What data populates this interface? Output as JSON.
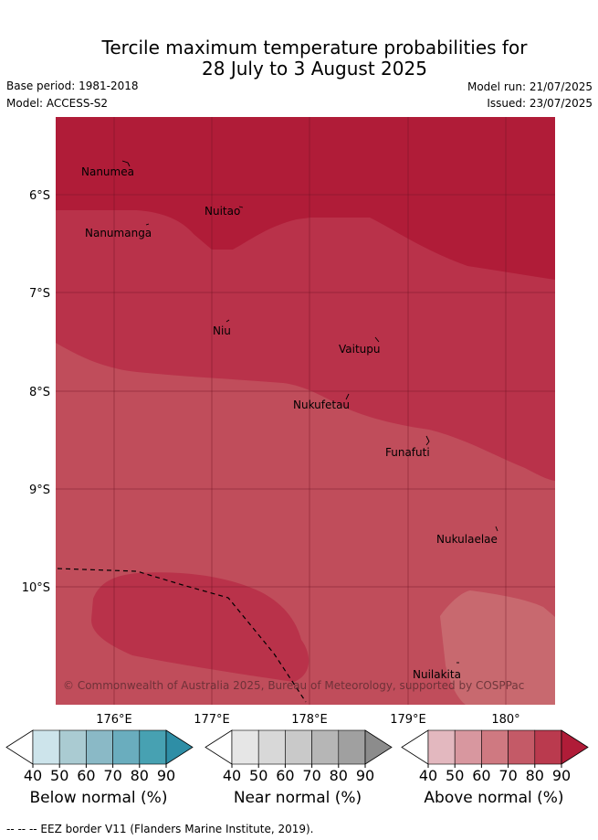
{
  "title": {
    "line1": "Tercile maximum temperature probabilities for",
    "line2": "28 July to 3 August 2025"
  },
  "meta": {
    "base_period": "Base period: 1981-2018",
    "model": "Model: ACCESS-S2",
    "model_run": "Model run: 21/07/2025",
    "issued": "Issued: 23/07/2025"
  },
  "map": {
    "lat_labels": [
      "6°S",
      "7°S",
      "8°S",
      "9°S",
      "10°S"
    ],
    "lon_labels": [
      "176°E",
      "177°E",
      "178°E",
      "179°E",
      "180°"
    ],
    "places": [
      "Nanumea",
      "Nuitao",
      "Nanumanga",
      "Niu",
      "Vaitupu",
      "Nukufetau",
      "Funafuti",
      "Nukulaelae",
      "Nuilakita"
    ],
    "copyright": "© Commonwealth of Australia 2025, Bureau of Meteorology, supported by COSPPac",
    "palette": {
      "above_90": "#b01c38",
      "above_80": "#b9324a",
      "above_70": "#c04d5b",
      "above_60": "#c8696f",
      "eez_line": "#000000"
    }
  },
  "colorbars": [
    {
      "label": "Below normal (%)",
      "ticks": [
        "40",
        "50",
        "60",
        "70",
        "80",
        "90"
      ],
      "colors": [
        "#cde4eb",
        "#aacbd2",
        "#8ab9c6",
        "#6aadbe",
        "#47a1b2",
        "#2e8ea6"
      ]
    },
    {
      "label": "Near normal (%)",
      "ticks": [
        "40",
        "50",
        "60",
        "70",
        "80",
        "90"
      ],
      "colors": [
        "#e6e6e6",
        "#d8d8d8",
        "#c9c9c9",
        "#b6b6b6",
        "#a0a0a0",
        "#8c8c8c"
      ]
    },
    {
      "label": "Above normal (%)",
      "ticks": [
        "40",
        "50",
        "60",
        "70",
        "80",
        "90"
      ],
      "colors": [
        "#e3b8bf",
        "#d8979f",
        "#cf7981",
        "#c45a67",
        "#ba3a4e",
        "#b01c38"
      ]
    }
  ],
  "eez_note": "--  --  -- EEZ border V11 (Flanders Marine Institute, 2019)."
}
